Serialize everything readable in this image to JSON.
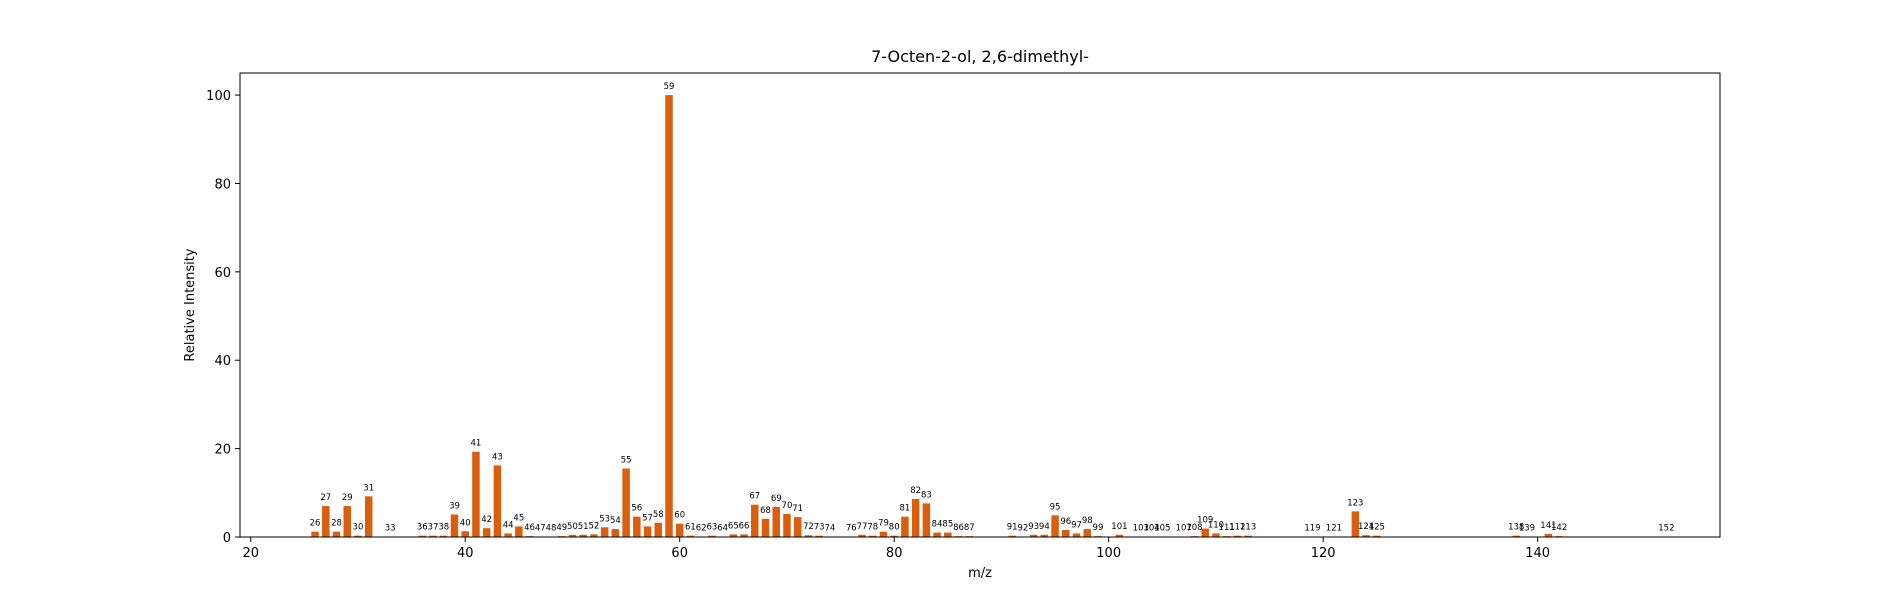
{
  "chart_data": {
    "type": "bar",
    "title": "7-Octen-2-ol, 2,6-dimethyl-",
    "xlabel": "m/z",
    "ylabel": "Relative Intensity",
    "xlim": [
      19,
      157
    ],
    "ylim": [
      0,
      105
    ],
    "xticks": [
      20,
      40,
      60,
      80,
      100,
      120,
      140
    ],
    "yticks": [
      0,
      20,
      40,
      60,
      80,
      100
    ],
    "grid": false,
    "bar_color": "#d95f0e",
    "x": [
      26,
      27,
      28,
      29,
      30,
      31,
      33,
      36,
      37,
      38,
      39,
      40,
      41,
      42,
      43,
      44,
      45,
      46,
      47,
      48,
      49,
      50,
      51,
      52,
      53,
      54,
      55,
      56,
      57,
      58,
      59,
      60,
      61,
      62,
      63,
      64,
      65,
      66,
      67,
      68,
      69,
      70,
      71,
      72,
      73,
      74,
      76,
      77,
      78,
      79,
      80,
      81,
      82,
      83,
      84,
      85,
      86,
      87,
      91,
      92,
      93,
      94,
      95,
      96,
      97,
      98,
      99,
      101,
      103,
      104,
      105,
      107,
      108,
      109,
      110,
      111,
      112,
      113,
      119,
      121,
      123,
      124,
      125,
      138,
      139,
      141,
      142,
      152
    ],
    "values": [
      1.2,
      7.0,
      1.2,
      7.0,
      0.3,
      9.2,
      0.1,
      0.3,
      0.3,
      0.3,
      5.1,
      1.3,
      19.3,
      2.0,
      16.2,
      0.8,
      2.4,
      0.2,
      0.1,
      0.1,
      0.2,
      0.5,
      0.5,
      0.6,
      2.2,
      1.8,
      15.5,
      4.6,
      2.4,
      3.2,
      100.0,
      3.0,
      0.3,
      0.1,
      0.3,
      0.1,
      0.6,
      0.6,
      7.3,
      4.1,
      6.8,
      5.2,
      4.5,
      0.4,
      0.3,
      0.1,
      0.1,
      0.5,
      0.3,
      1.2,
      0.3,
      4.6,
      8.6,
      7.6,
      1.0,
      1.0,
      0.2,
      0.2,
      0.3,
      0.1,
      0.5,
      0.5,
      4.9,
      1.6,
      0.8,
      1.8,
      0.2,
      0.5,
      0.1,
      0.1,
      0.1,
      0.1,
      0.2,
      1.9,
      0.8,
      0.2,
      0.3,
      0.3,
      0.1,
      0.1,
      5.8,
      0.4,
      0.3,
      0.3,
      0.1,
      0.7,
      0.2,
      0.1
    ]
  }
}
